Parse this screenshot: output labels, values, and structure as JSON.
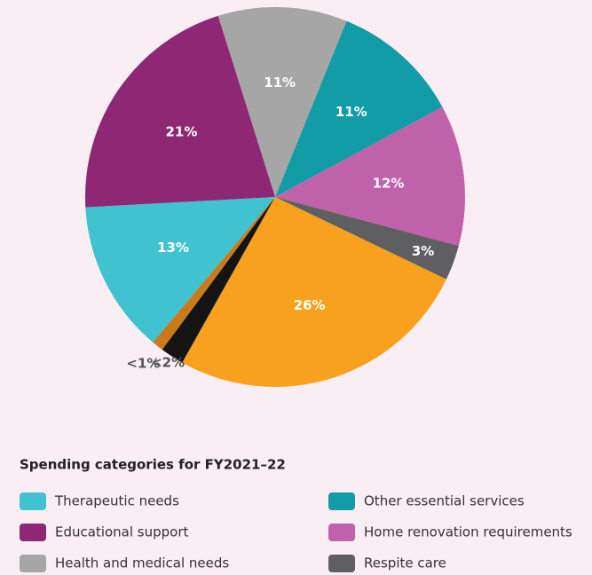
{
  "chart_data": {
    "type": "pie",
    "legend_title": "Spending categories for FY2021–22",
    "categories": [
      "Health and medical needs",
      "Other essential services",
      "Home renovation requirements",
      "Respite care",
      null,
      null,
      null,
      "Therapeutic needs",
      "Educational support"
    ],
    "values": [
      11,
      11,
      12,
      3,
      26,
      2,
      1,
      13,
      21
    ],
    "value_labels": [
      "11%",
      "11%",
      "12%",
      "3%",
      "26%",
      "<2%",
      "<1%",
      "13%",
      "21%"
    ],
    "colors": [
      "#a6a6a6",
      "#119ca6",
      "#c062a9",
      "#5f5f61",
      "#f7a11f",
      "#141414",
      "#c97b1b",
      "#40c2d1",
      "#8e2774"
    ]
  }
}
